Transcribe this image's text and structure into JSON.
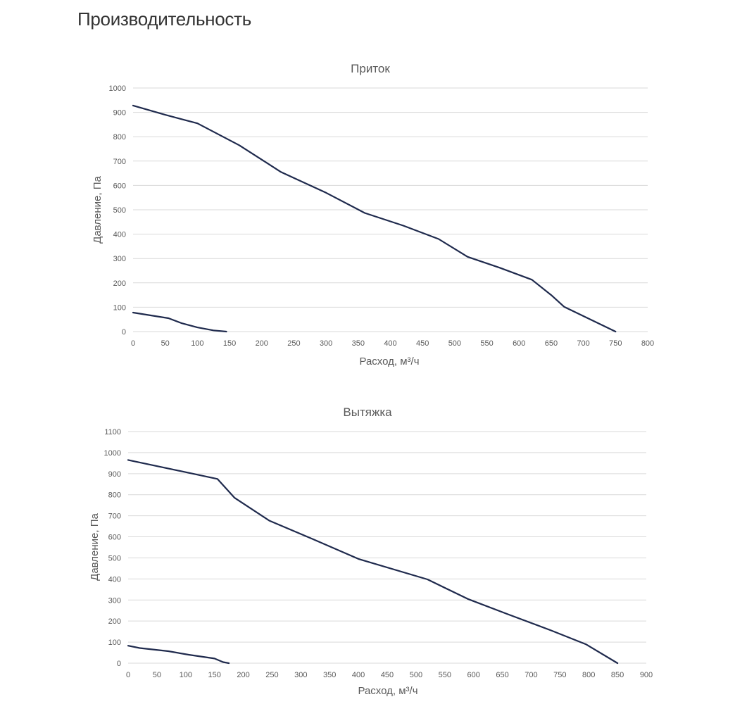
{
  "page": {
    "title": "Производительность"
  },
  "chart_data": [
    {
      "type": "line",
      "title": "Приток",
      "xlabel": "Расход, м³/ч",
      "ylabel": "Давление, Па",
      "xlim": [
        0,
        800
      ],
      "ylim": [
        0,
        1000
      ],
      "x_ticks": [
        0,
        50,
        100,
        150,
        200,
        250,
        300,
        350,
        400,
        450,
        500,
        550,
        600,
        650,
        700,
        750,
        800
      ],
      "y_ticks": [
        0,
        100,
        200,
        300,
        400,
        500,
        600,
        700,
        800,
        900,
        1000
      ],
      "grid": true,
      "line_color": "#1f2a4d",
      "series": [
        {
          "x": [
            0,
            50,
            100,
            165,
            230,
            300,
            360,
            420,
            475,
            520,
            570,
            620,
            650,
            670,
            750
          ],
          "y": [
            928,
            890,
            855,
            765,
            655,
            570,
            487,
            435,
            380,
            307,
            262,
            213,
            150,
            102,
            0
          ]
        },
        {
          "x": [
            0,
            55,
            75,
            100,
            125,
            145
          ],
          "y": [
            78,
            55,
            35,
            17,
            5,
            0
          ]
        }
      ]
    },
    {
      "type": "line",
      "title": "Вытяжка",
      "xlabel": "Расход, м³/ч",
      "ylabel": "Давление, Па",
      "xlim": [
        0,
        900
      ],
      "ylim": [
        0,
        1100
      ],
      "x_ticks": [
        0,
        50,
        100,
        150,
        200,
        250,
        300,
        350,
        400,
        450,
        500,
        550,
        600,
        650,
        700,
        750,
        800,
        850,
        900
      ],
      "y_ticks": [
        0,
        100,
        200,
        300,
        400,
        500,
        600,
        700,
        800,
        900,
        1000,
        1100
      ],
      "grid": true,
      "line_color": "#1f2a4d",
      "series": [
        {
          "x": [
            0,
            155,
            185,
            245,
            320,
            400,
            520,
            590,
            660,
            735,
            795,
            850
          ],
          "y": [
            965,
            875,
            785,
            677,
            590,
            495,
            398,
            305,
            232,
            155,
            90,
            0
          ]
        },
        {
          "x": [
            0,
            20,
            70,
            105,
            150,
            165,
            175
          ],
          "y": [
            83,
            72,
            57,
            40,
            22,
            5,
            0
          ]
        }
      ]
    }
  ]
}
